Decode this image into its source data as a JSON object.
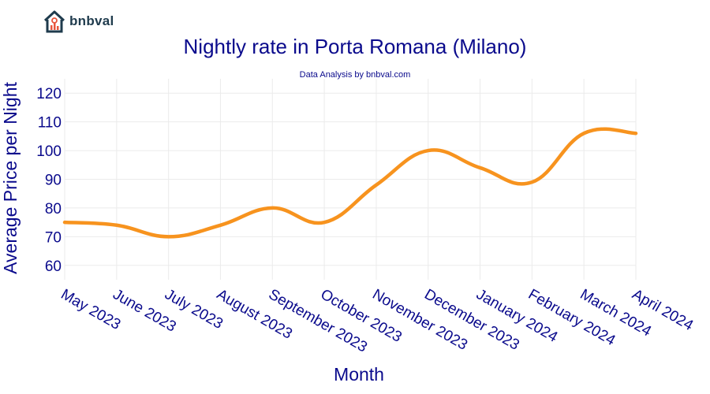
{
  "brand": {
    "name": "bnbval"
  },
  "colors": {
    "line": "#f7931e",
    "text": "#0a0a8c",
    "grid": "#ebebeb"
  },
  "chart_data": {
    "type": "line",
    "title": "Nightly rate in Porta Romana (Milano)",
    "subtitle": "Data Analysis by bnbval.com",
    "xlabel": "Month",
    "ylabel": "Average Price per Night",
    "categories": [
      "May 2023",
      "June 2023",
      "July 2023",
      "August 2023",
      "September 2023",
      "October 2023",
      "November 2023",
      "December 2023",
      "January 2024",
      "February 2024",
      "March 2024",
      "April 2024"
    ],
    "series": [
      {
        "values": [
          75,
          74,
          70,
          74,
          80,
          75,
          88,
          100,
          94,
          89,
          106,
          106
        ]
      }
    ],
    "ylim": [
      55,
      125
    ],
    "yticks": [
      60,
      70,
      80,
      90,
      100,
      110,
      120
    ],
    "grid": true,
    "legend": "none"
  }
}
